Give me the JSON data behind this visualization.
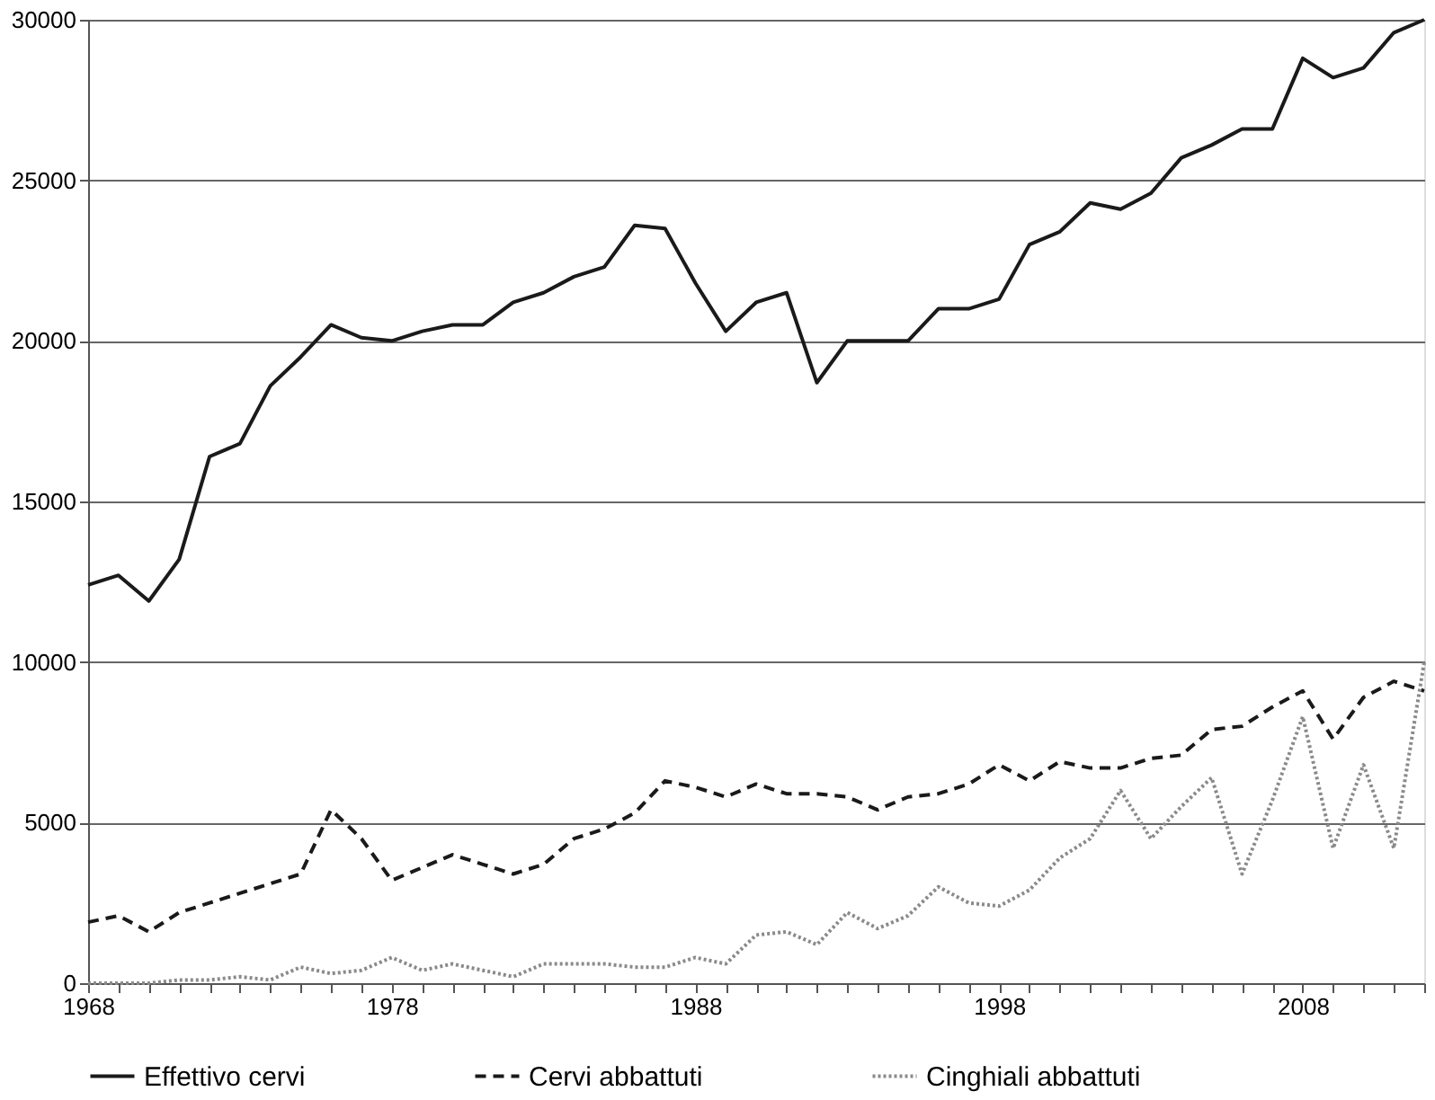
{
  "chart_data": {
    "type": "line",
    "x": [
      1968,
      1969,
      1970,
      1971,
      1972,
      1973,
      1974,
      1975,
      1976,
      1977,
      1978,
      1979,
      1980,
      1981,
      1982,
      1983,
      1984,
      1985,
      1986,
      1987,
      1988,
      1989,
      1990,
      1991,
      1992,
      1993,
      1994,
      1995,
      1996,
      1997,
      1998,
      1999,
      2000,
      2001,
      2002,
      2003,
      2004,
      2005,
      2006,
      2007,
      2008,
      2009,
      2010,
      2011,
      2012
    ],
    "series": [
      {
        "name": "Effettivo cervi",
        "color": "#1a1a1a",
        "line_style": "solid",
        "values": [
          12400,
          12700,
          11900,
          13200,
          16400,
          16800,
          18600,
          19500,
          20500,
          20100,
          20000,
          20300,
          20500,
          20500,
          21200,
          21500,
          22000,
          22300,
          23600,
          23500,
          21800,
          20300,
          21200,
          21500,
          18700,
          20000,
          20000,
          20000,
          21000,
          21000,
          21300,
          23000,
          23400,
          24300,
          24100,
          24600,
          25700,
          26100,
          26600,
          26600,
          28800,
          28200,
          28500,
          29600,
          30000
        ]
      },
      {
        "name": "Cervi abbattuti",
        "color": "#1a1a1a",
        "line_style": "dashed",
        "values": [
          1900,
          2100,
          1600,
          2200,
          2500,
          2800,
          3100,
          3400,
          5400,
          4500,
          3200,
          3600,
          4000,
          3700,
          3400,
          3700,
          4500,
          4800,
          5300,
          6300,
          6100,
          5800,
          6200,
          5900,
          5900,
          5800,
          5400,
          5800,
          5900,
          6200,
          6800,
          6300,
          6900,
          6700,
          6700,
          7000,
          7100,
          7900,
          8000,
          8600,
          9100,
          7600,
          8900,
          9400,
          9100
        ]
      },
      {
        "name": "Cinghiali abbattuti",
        "color": "#8a8a8a",
        "line_style": "dotted",
        "values": [
          0,
          0,
          0,
          100,
          100,
          200,
          100,
          500,
          300,
          400,
          800,
          400,
          600,
          400,
          200,
          600,
          600,
          600,
          500,
          500,
          800,
          600,
          1500,
          1600,
          1200,
          2200,
          1700,
          2100,
          3000,
          2500,
          2400,
          2900,
          3900,
          4500,
          6000,
          4500,
          5500,
          6400,
          3400,
          5700,
          8300,
          4200,
          6800,
          4200,
          10000
        ]
      }
    ],
    "xlim": [
      1968,
      2012
    ],
    "xticks": [
      1968,
      {
        "value": 1969,
        "label": null
      },
      {
        "value": 1970,
        "label": null
      },
      {
        "value": 1971,
        "label": null
      },
      {
        "value": 1972,
        "label": null
      },
      {
        "value": 1973,
        "label": null
      },
      {
        "value": 1974,
        "label": null
      },
      {
        "value": 1975,
        "label": null
      },
      {
        "value": 1976,
        "label": null
      },
      {
        "value": 1977,
        "label": null
      },
      1978,
      {
        "value": 1979,
        "label": null
      },
      {
        "value": 1980,
        "label": null
      },
      {
        "value": 1981,
        "label": null
      },
      {
        "value": 1982,
        "label": null
      },
      {
        "value": 1983,
        "label": null
      },
      {
        "value": 1984,
        "label": null
      },
      {
        "value": 1985,
        "label": null
      },
      {
        "value": 1986,
        "label": null
      },
      {
        "value": 1987,
        "label": null
      },
      1988,
      {
        "value": 1989,
        "label": null
      },
      {
        "value": 1990,
        "label": null
      },
      {
        "value": 1991,
        "label": null
      },
      {
        "value": 1992,
        "label": null
      },
      {
        "value": 1993,
        "label": null
      },
      {
        "value": 1994,
        "label": null
      },
      {
        "value": 1995,
        "label": null
      },
      {
        "value": 1996,
        "label": null
      },
      {
        "value": 1997,
        "label": null
      },
      1998,
      {
        "value": 1999,
        "label": null
      },
      {
        "value": 2000,
        "label": null
      },
      {
        "value": 2001,
        "label": null
      },
      {
        "value": 2002,
        "label": null
      },
      {
        "value": 2003,
        "label": null
      },
      {
        "value": 2004,
        "label": null
      },
      {
        "value": 2005,
        "label": null
      },
      {
        "value": 2006,
        "label": null
      },
      {
        "value": 2007,
        "label": null
      },
      2008,
      {
        "value": 2009,
        "label": null
      },
      {
        "value": 2010,
        "label": null
      },
      {
        "value": 2011,
        "label": null
      },
      {
        "value": 2012,
        "label": null
      }
    ],
    "ylim": [
      0,
      30000
    ],
    "yticks": [
      0,
      5000,
      10000,
      15000,
      20000,
      25000,
      30000
    ],
    "grid": "y",
    "legend": "bottom",
    "marker": "none"
  }
}
